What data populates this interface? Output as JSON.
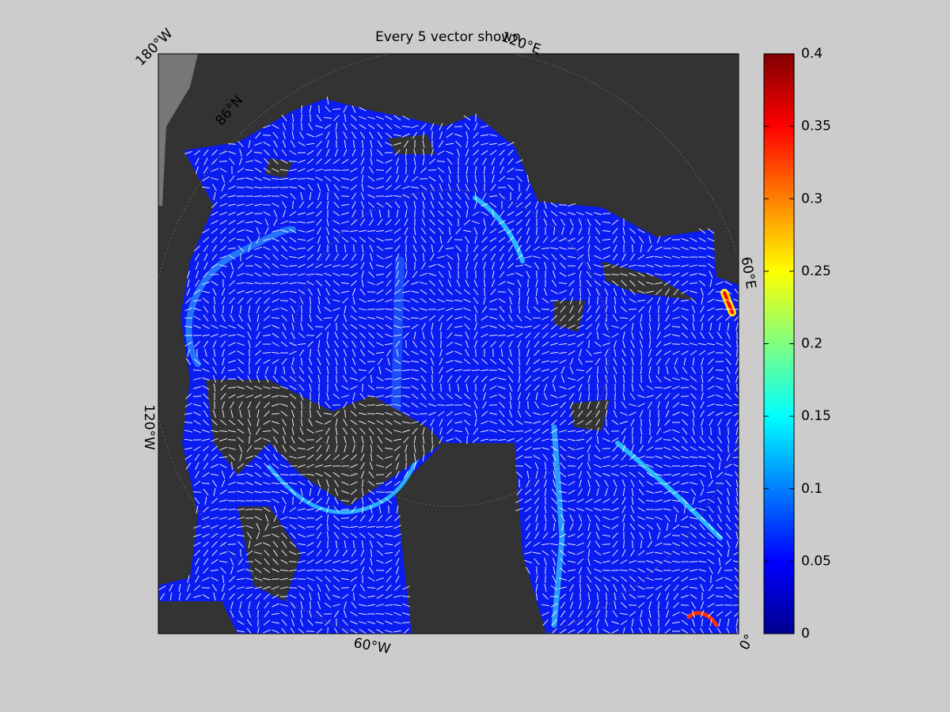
{
  "title": "Every 5 vector shown",
  "lon_labels": [
    "180°W",
    "120°E",
    "60°E",
    "0°",
    "60°W",
    "120°W"
  ],
  "lat_labels": [
    "86°N"
  ],
  "colorbar": {
    "lim": [
      0,
      0.4
    ],
    "ticks": [
      0,
      0.05,
      0.1,
      0.15,
      0.2,
      0.25,
      0.3,
      0.35,
      0.4
    ]
  }
}
